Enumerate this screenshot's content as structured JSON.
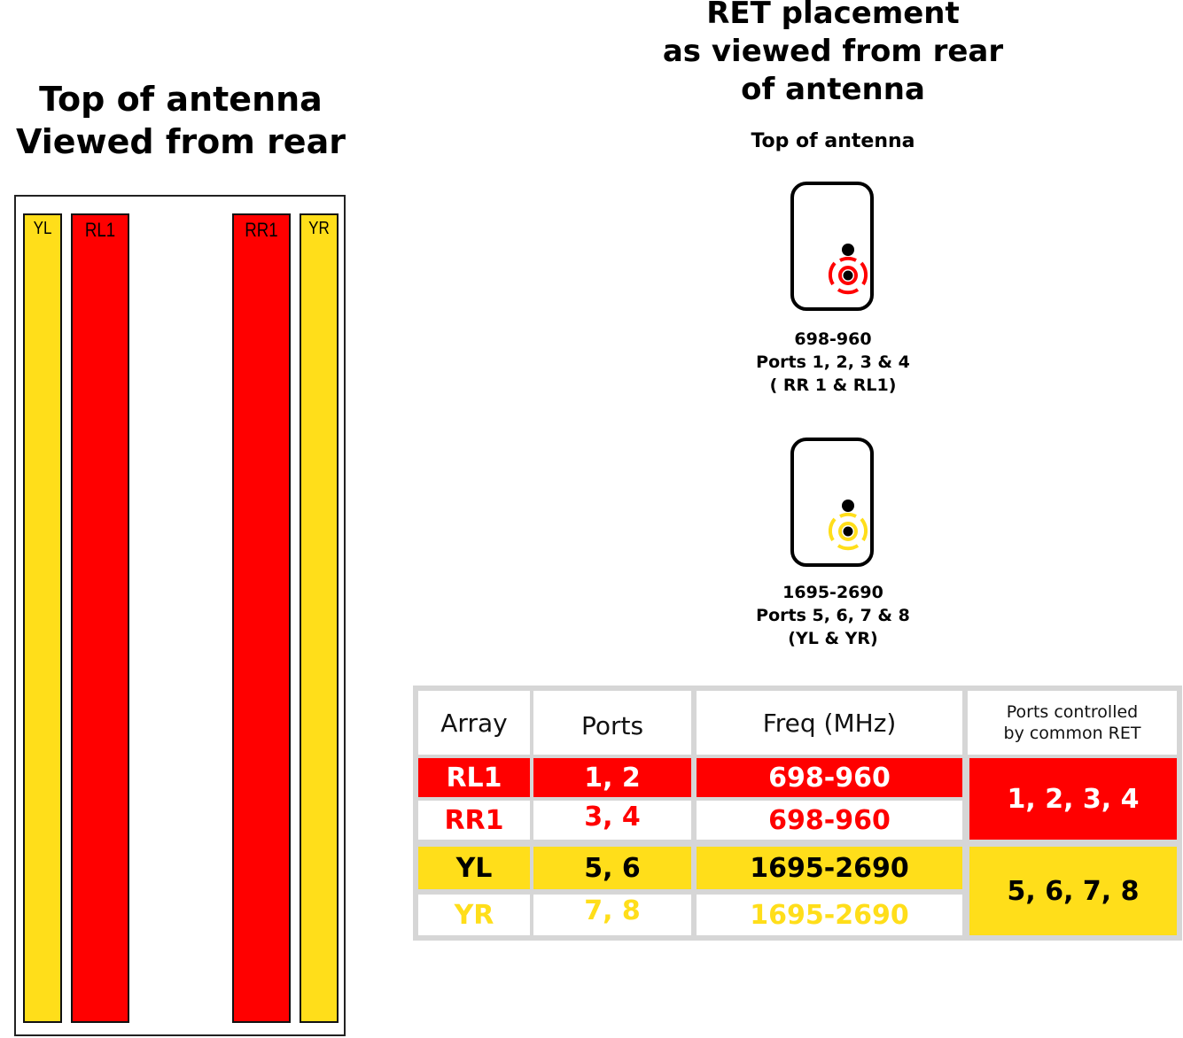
{
  "left": {
    "title_line1": "Top of antenna",
    "title_line2": "Viewed from rear",
    "arrays": [
      {
        "id": "yl",
        "label": "YL"
      },
      {
        "id": "rl1",
        "label": "RL1"
      },
      {
        "id": "rr1",
        "label": "RR1"
      },
      {
        "id": "yr",
        "label": "YR"
      }
    ]
  },
  "right": {
    "title_line1": "RET placement",
    "title_line2": "as viewed from rear",
    "title_line3": "of antenna",
    "subtitle": "Top of antenna",
    "ret_units": [
      {
        "color": "#FF0000",
        "freq": "698-960",
        "ports": "Ports 1, 2, 3 & 4",
        "arrays": "( RR 1 & RL1)"
      },
      {
        "color": "#FFDE1A",
        "freq": "1695-2690",
        "ports": "Ports 5, 6, 7 & 8",
        "arrays": "(YL & YR)"
      }
    ]
  },
  "table": {
    "headers": [
      "Array",
      "Ports",
      "Freq (MHz)",
      "Ports controlled",
      "by common RET"
    ],
    "rows": [
      {
        "array": "RL1",
        "ports": "1, 2",
        "freq": "698-960"
      },
      {
        "array": "RR1",
        "ports": "3, 4",
        "freq": "698-960"
      },
      {
        "array": "YL",
        "ports": "5, 6",
        "freq": "1695-2690"
      },
      {
        "array": "YR",
        "ports": "7, 8",
        "freq": "1695-2690"
      }
    ],
    "common_ret": [
      "1, 2, 3, 4",
      "5, 6, 7, 8"
    ]
  },
  "colors": {
    "red": "#FF0000",
    "yellow": "#FFDE1A",
    "grid": "#D6D6D6"
  }
}
